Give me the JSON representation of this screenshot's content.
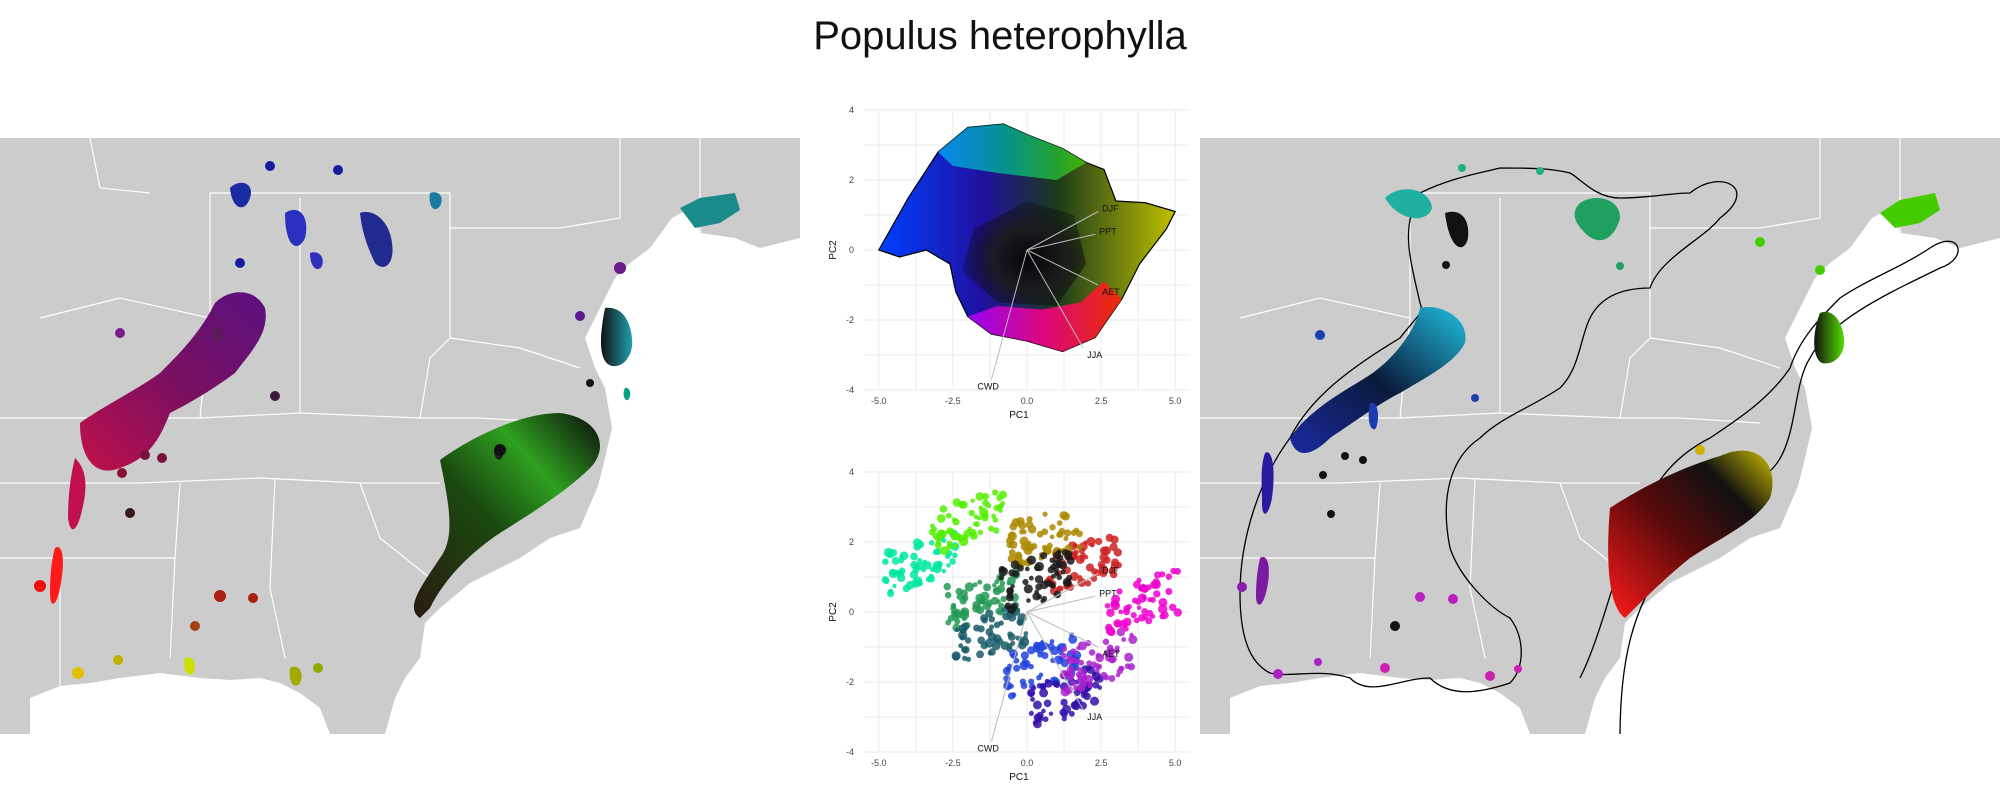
{
  "title": "Populus heterophylla",
  "chart_data": [
    {
      "type": "scatter",
      "panel": "pca-top",
      "xlabel": "PC1",
      "ylabel": "PC2",
      "xlim": [
        -5.5,
        5.5
      ],
      "ylim": [
        -4,
        4
      ],
      "xticks": [
        -5.0,
        -2.5,
        0.0,
        2.5,
        5.0
      ],
      "yticks": [
        -4,
        -2,
        0,
        2,
        4
      ],
      "xtick_labels": [
        "-5.0",
        "-2.5",
        "0.0",
        "2.5",
        "5.0"
      ],
      "ytick_labels": [
        "-4",
        "-2",
        "0",
        "2",
        "4"
      ],
      "grid": true,
      "vectors": [
        {
          "label": "DJF",
          "x": 2.4,
          "y": 1.1
        },
        {
          "label": "PPT",
          "x": 2.3,
          "y": 0.45
        },
        {
          "label": "AET",
          "x": 2.4,
          "y": -1.0
        },
        {
          "label": "JJA",
          "x": 1.9,
          "y": -2.8
        },
        {
          "label": "CWD",
          "x": -1.2,
          "y": -3.7
        }
      ]
    },
    {
      "type": "scatter",
      "panel": "pca-bottom",
      "xlabel": "PC1",
      "ylabel": "PC2",
      "xlim": [
        -5.5,
        5.5
      ],
      "ylim": [
        -4,
        4
      ],
      "xticks": [
        -5.0,
        -2.5,
        0.0,
        2.5,
        5.0
      ],
      "yticks": [
        -4,
        -2,
        0,
        2,
        4
      ],
      "xtick_labels": [
        "-5.0",
        "-2.5",
        "0.0",
        "2.5",
        "5.0"
      ],
      "ytick_labels": [
        "-4",
        "-2",
        "0",
        "2",
        "4"
      ],
      "grid": true,
      "vectors": [
        {
          "label": "DJF",
          "x": 2.4,
          "y": 1.1
        },
        {
          "label": "PPT",
          "x": 2.3,
          "y": 0.45
        },
        {
          "label": "AET",
          "x": 2.4,
          "y": -1.0
        },
        {
          "label": "JJA",
          "x": 1.9,
          "y": -2.8
        },
        {
          "label": "CWD",
          "x": -1.2,
          "y": -3.7
        }
      ],
      "clusters": [
        {
          "color": "#00e8a0",
          "cx": -3.6,
          "cy": 1.4
        },
        {
          "color": "#55ee00",
          "cx": -2.0,
          "cy": 2.6
        },
        {
          "color": "#229955",
          "cx": -1.5,
          "cy": 0.4
        },
        {
          "color": "#1a5c6a",
          "cx": -1.2,
          "cy": -0.6
        },
        {
          "color": "#2244dd",
          "cx": 0.5,
          "cy": -1.5
        },
        {
          "color": "#3311aa",
          "cx": 1.3,
          "cy": -2.4
        },
        {
          "color": "#aa22cc",
          "cx": 2.4,
          "cy": -1.4
        },
        {
          "color": "#ee00cc",
          "cx": 3.9,
          "cy": 0.3
        },
        {
          "color": "#cc2222",
          "cx": 1.9,
          "cy": 1.4
        },
        {
          "color": "#aa8800",
          "cx": 0.6,
          "cy": 2.2
        },
        {
          "color": "#1a1a1a",
          "cx": 0.3,
          "cy": 0.9
        }
      ]
    }
  ],
  "colors": {
    "map_land": "#cccccc",
    "map_border": "#ffffff",
    "grid": "#ebebeb"
  }
}
